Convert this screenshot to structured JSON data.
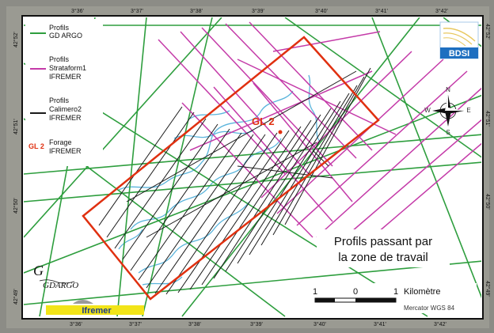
{
  "map": {
    "top_ticks": [
      "3°36'",
      "3°37'",
      "3°38'",
      "3°39'",
      "3°40'",
      "3°41'",
      "3°42'"
    ],
    "bottom_ticks": [
      "3°36'",
      "3°37'",
      "3°38'",
      "3°39'",
      "3°40'",
      "3°41'",
      "3°42'"
    ],
    "left_ticks": [
      "42°52'",
      "42°51'",
      "42°50'",
      "42°49'"
    ],
    "right_ticks": [
      "42°52'",
      "42°51'",
      "42°50'",
      "42°49'"
    ]
  },
  "legend": {
    "items": [
      {
        "lines": [
          "Profils",
          "GD ARGO"
        ],
        "color": "#2e9e3e",
        "kind": "line"
      },
      {
        "lines": [
          "Profils",
          "Strataform1",
          "IFREMER"
        ],
        "color": "#c43aa8",
        "kind": "line"
      },
      {
        "lines": [
          "Profils",
          "Calimero2",
          "IFREMER"
        ],
        "color": "#1a1a1a",
        "kind": "line"
      },
      {
        "lines": [
          "Forage",
          "IFREMER"
        ],
        "color": "#e03010",
        "kind": "label",
        "tag": "GL 2"
      }
    ]
  },
  "work_zone_label": "GL 2",
  "info_box": {
    "line1": "Profils passant par",
    "line2": "la zone de travail"
  },
  "scale": {
    "left": "1",
    "mid": "0",
    "right": "1",
    "unit": "Kilomètre",
    "projection": "Mercator WGS 84"
  },
  "compass": {
    "n": "N",
    "s": "S",
    "e": "E",
    "w": "W"
  },
  "logos": {
    "bdsi": "BDSI",
    "gdargo": "GDARGO",
    "ifremer": "Ifremer"
  },
  "colors": {
    "green": "#2e9e3e",
    "magenta": "#c43aa8",
    "black": "#1a1a1a",
    "cyan": "#5ab4dc",
    "zone": "#e03010"
  }
}
